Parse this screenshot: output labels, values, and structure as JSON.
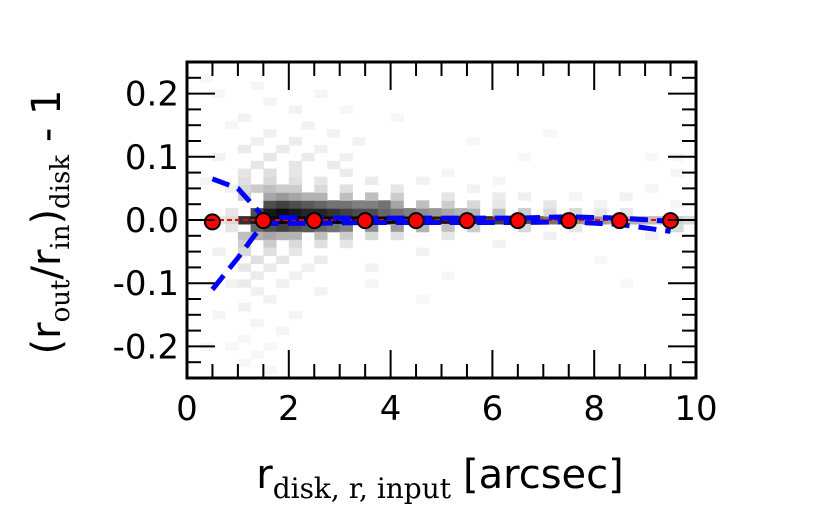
{
  "chart_data": {
    "type": "scatter",
    "title": "",
    "xlabel": {
      "main": "r",
      "subscript": "disk, r, input",
      "suffix": "[arcsec]"
    },
    "ylabel": {
      "open": "(r",
      "sub1": "out",
      "mid": "/r",
      "sub2": "in",
      "close": ")",
      "sub3": "disk",
      "tail": " - 1"
    },
    "xlim": [
      0,
      10
    ],
    "ylim": [
      -0.25,
      0.25
    ],
    "xticks": [
      0,
      2,
      4,
      6,
      8,
      10
    ],
    "xtick_labels": [
      "0",
      "2",
      "4",
      "6",
      "8",
      "10"
    ],
    "yticks": [
      -0.2,
      -0.1,
      0.0,
      0.1,
      0.2
    ],
    "ytick_labels": [
      "-0.2",
      "-0.1",
      "0.0",
      "0.1",
      "0.2"
    ],
    "grid": false,
    "colors": {
      "median_marker_fill": "#ff0000",
      "median_marker_edge": "#000000",
      "percentile_line": "#0000ff",
      "reference_line": "#ff0000",
      "density": "#000000"
    },
    "series": [
      {
        "type": "line",
        "style": "dashed",
        "x": [
          0.5,
          1.0,
          1.5,
          2.5,
          3.5,
          4.5,
          5.5,
          6.5,
          7.5,
          8.5,
          9.5
        ],
        "y": [
          0.065,
          0.05,
          0.005,
          0.003,
          0.003,
          0.003,
          0.003,
          0.003,
          0.005,
          0.003,
          -0.002
        ]
      },
      {
        "type": "line",
        "style": "dashed",
        "x": [
          0.5,
          1.0,
          1.5,
          2.5,
          3.5,
          4.5,
          5.5,
          6.5,
          7.5,
          8.5,
          9.5
        ],
        "y": [
          -0.11,
          -0.06,
          -0.005,
          -0.005,
          -0.004,
          -0.004,
          -0.004,
          -0.004,
          -0.003,
          -0.007,
          -0.018
        ]
      },
      {
        "type": "scatter",
        "x": [
          0.5,
          1.5,
          2.5,
          3.5,
          4.5,
          5.5,
          6.5,
          7.5,
          8.5,
          9.5
        ],
        "y": [
          -0.003,
          -0.001,
          -0.001,
          -0.001,
          -0.001,
          -0.001,
          -0.001,
          -0.001,
          -0.001,
          -0.001
        ]
      }
    ],
    "reference_line_y": 0.0,
    "density_grid": {
      "x_bin_width": 0.25,
      "y_bin_width": 0.0125,
      "cells": [
        [
          1.0,
          0.0,
          0.8
        ],
        [
          1.25,
          0.0,
          0.9
        ],
        [
          1.5,
          0.0,
          1.0
        ],
        [
          1.75,
          0.0,
          1.0
        ],
        [
          2.0,
          0.0,
          1.0
        ],
        [
          2.25,
          0.0,
          1.0
        ],
        [
          2.5,
          0.0,
          1.0
        ],
        [
          2.75,
          0.0,
          1.0
        ],
        [
          3.0,
          0.0,
          1.0
        ],
        [
          3.25,
          0.0,
          1.0
        ],
        [
          3.5,
          0.0,
          1.0
        ],
        [
          3.75,
          0.0,
          1.0
        ],
        [
          4.0,
          0.0,
          0.95
        ],
        [
          4.25,
          0.0,
          0.95
        ],
        [
          4.5,
          0.0,
          0.9
        ],
        [
          4.75,
          0.0,
          0.9
        ],
        [
          5.0,
          0.0,
          0.9
        ],
        [
          5.25,
          0.0,
          0.85
        ],
        [
          5.5,
          0.0,
          0.85
        ],
        [
          5.75,
          0.0,
          0.8
        ],
        [
          6.0,
          0.0,
          0.75
        ],
        [
          6.25,
          0.0,
          0.7
        ],
        [
          6.5,
          0.0,
          0.7
        ],
        [
          6.75,
          0.0,
          0.6
        ],
        [
          7.0,
          0.0,
          0.55
        ],
        [
          7.25,
          0.0,
          0.5
        ],
        [
          7.5,
          0.0,
          0.45
        ],
        [
          7.75,
          0.0,
          0.4
        ],
        [
          8.0,
          0.0,
          0.4
        ],
        [
          8.25,
          0.0,
          0.35
        ],
        [
          8.5,
          0.0,
          0.3
        ],
        [
          8.75,
          0.0,
          0.3
        ],
        [
          9.0,
          0.0,
          0.25
        ],
        [
          9.25,
          0.0,
          0.25
        ],
        [
          9.5,
          0.0,
          0.2
        ],
        [
          9.75,
          0.0,
          0.15
        ],
        [
          1.25,
          0.0125,
          0.7
        ],
        [
          1.5,
          0.0125,
          0.9
        ],
        [
          1.75,
          0.0125,
          0.95
        ],
        [
          2.0,
          0.0125,
          0.9
        ],
        [
          2.25,
          0.0125,
          0.85
        ],
        [
          2.5,
          0.0125,
          0.85
        ],
        [
          2.75,
          0.0125,
          0.8
        ],
        [
          3.0,
          0.0125,
          0.75
        ],
        [
          3.25,
          0.0125,
          0.7
        ],
        [
          3.5,
          0.0125,
          0.7
        ],
        [
          3.75,
          0.0125,
          0.6
        ],
        [
          4.0,
          0.0125,
          0.55
        ],
        [
          4.25,
          0.0125,
          0.5
        ],
        [
          4.5,
          0.0125,
          0.45
        ],
        [
          4.75,
          0.0125,
          0.4
        ],
        [
          5.0,
          0.0125,
          0.35
        ],
        [
          5.25,
          0.0125,
          0.3
        ],
        [
          5.5,
          0.0125,
          0.3
        ],
        [
          6.0,
          0.0125,
          0.25
        ],
        [
          6.5,
          0.0125,
          0.2
        ],
        [
          7.0,
          0.0125,
          0.15
        ],
        [
          7.5,
          0.0125,
          0.15
        ],
        [
          8.0,
          0.0125,
          0.1
        ],
        [
          8.5,
          0.0125,
          0.1
        ],
        [
          1.25,
          -0.0125,
          0.6
        ],
        [
          1.5,
          -0.0125,
          0.7
        ],
        [
          1.75,
          -0.0125,
          0.75
        ],
        [
          2.0,
          -0.0125,
          0.7
        ],
        [
          2.25,
          -0.0125,
          0.65
        ],
        [
          2.5,
          -0.0125,
          0.6
        ],
        [
          2.75,
          -0.0125,
          0.55
        ],
        [
          3.0,
          -0.0125,
          0.5
        ],
        [
          3.5,
          -0.0125,
          0.45
        ],
        [
          4.0,
          -0.0125,
          0.4
        ],
        [
          4.5,
          -0.0125,
          0.3
        ],
        [
          5.0,
          -0.0125,
          0.25
        ],
        [
          5.5,
          -0.0125,
          0.2
        ],
        [
          6.5,
          -0.0125,
          0.15
        ],
        [
          7.5,
          -0.0125,
          0.1
        ],
        [
          9.5,
          -0.0125,
          0.15
        ],
        [
          1.5,
          0.025,
          0.7
        ],
        [
          1.75,
          0.025,
          0.75
        ],
        [
          2.0,
          0.025,
          0.7
        ],
        [
          2.25,
          0.025,
          0.65
        ],
        [
          2.5,
          0.025,
          0.6
        ],
        [
          2.75,
          0.025,
          0.55
        ],
        [
          3.0,
          0.025,
          0.55
        ],
        [
          3.25,
          0.025,
          0.5
        ],
        [
          3.5,
          0.025,
          0.5
        ],
        [
          3.75,
          0.025,
          0.55
        ],
        [
          4.0,
          0.025,
          0.35
        ],
        [
          4.5,
          0.025,
          0.25
        ],
        [
          5.0,
          0.025,
          0.2
        ],
        [
          5.5,
          0.025,
          0.15
        ],
        [
          6.0,
          0.025,
          0.1
        ],
        [
          7.0,
          0.025,
          0.1
        ],
        [
          1.5,
          0.0375,
          0.35
        ],
        [
          1.75,
          0.0375,
          0.4
        ],
        [
          2.0,
          0.0375,
          0.35
        ],
        [
          2.25,
          0.0375,
          0.3
        ],
        [
          2.5,
          0.0375,
          0.3
        ],
        [
          3.0,
          0.0375,
          0.25
        ],
        [
          3.5,
          0.0375,
          0.25
        ],
        [
          4.0,
          0.0375,
          0.2
        ],
        [
          5.0,
          0.0375,
          0.1
        ],
        [
          6.0,
          0.0375,
          0.08
        ],
        [
          1.0,
          0.0375,
          0.2
        ],
        [
          1.0,
          0.05,
          0.15
        ],
        [
          1.25,
          0.05,
          0.2
        ],
        [
          1.5,
          0.05,
          0.25
        ],
        [
          1.75,
          0.05,
          0.2
        ],
        [
          2.0,
          0.05,
          0.2
        ],
        [
          2.5,
          0.05,
          0.15
        ],
        [
          3.0,
          0.05,
          0.12
        ],
        [
          4.0,
          0.05,
          0.1
        ],
        [
          1.0,
          0.0625,
          0.12
        ],
        [
          1.5,
          0.0625,
          0.15
        ],
        [
          2.0,
          0.0625,
          0.12
        ],
        [
          2.5,
          0.0625,
          0.1
        ],
        [
          3.5,
          0.0625,
          0.08
        ],
        [
          1.0,
          0.075,
          0.1
        ],
        [
          1.5,
          0.075,
          0.12
        ],
        [
          2.0,
          0.075,
          0.1
        ],
        [
          3.0,
          0.075,
          0.08
        ],
        [
          1.25,
          0.0875,
          0.1
        ],
        [
          2.0,
          0.0875,
          0.1
        ],
        [
          2.75,
          0.0875,
          0.08
        ],
        [
          1.5,
          0.1,
          0.1
        ],
        [
          2.25,
          0.1,
          0.08
        ],
        [
          3.0,
          0.1,
          0.06
        ],
        [
          1.0,
          0.1125,
          0.08
        ],
        [
          1.75,
          0.1125,
          0.08
        ],
        [
          2.5,
          0.1125,
          0.06
        ],
        [
          1.25,
          0.125,
          0.06
        ],
        [
          2.0,
          0.125,
          0.07
        ],
        [
          1.5,
          0.1375,
          0.06
        ],
        [
          2.25,
          0.15,
          0.05
        ],
        [
          1.0,
          0.1625,
          0.05
        ],
        [
          2.0,
          0.175,
          0.05
        ],
        [
          1.5,
          0.1875,
          0.04
        ],
        [
          2.5,
          0.2,
          0.04
        ],
        [
          1.25,
          0.2125,
          0.04
        ],
        [
          2.75,
          0.1375,
          0.05
        ],
        [
          3.25,
          0.125,
          0.05
        ],
        [
          1.0,
          -0.025,
          0.25
        ],
        [
          1.25,
          -0.025,
          0.3
        ],
        [
          1.5,
          -0.025,
          0.35
        ],
        [
          1.75,
          -0.025,
          0.3
        ],
        [
          2.0,
          -0.025,
          0.3
        ],
        [
          2.5,
          -0.025,
          0.25
        ],
        [
          3.0,
          -0.025,
          0.2
        ],
        [
          3.5,
          -0.025,
          0.15
        ],
        [
          4.0,
          -0.025,
          0.12
        ],
        [
          5.0,
          -0.025,
          0.1
        ],
        [
          1.0,
          -0.0375,
          0.2
        ],
        [
          1.5,
          -0.0375,
          0.2
        ],
        [
          2.0,
          -0.0375,
          0.15
        ],
        [
          2.5,
          -0.0375,
          0.12
        ],
        [
          3.0,
          -0.0375,
          0.1
        ],
        [
          1.0,
          -0.05,
          0.15
        ],
        [
          1.5,
          -0.05,
          0.12
        ],
        [
          2.0,
          -0.05,
          0.1
        ],
        [
          1.25,
          -0.0625,
          0.12
        ],
        [
          1.75,
          -0.0625,
          0.1
        ],
        [
          2.5,
          -0.0625,
          0.08
        ],
        [
          1.0,
          -0.075,
          0.1
        ],
        [
          1.5,
          -0.075,
          0.08
        ],
        [
          2.25,
          -0.075,
          0.06
        ],
        [
          1.25,
          -0.0875,
          0.08
        ],
        [
          2.0,
          -0.0875,
          0.06
        ],
        [
          1.0,
          -0.1,
          0.08
        ],
        [
          1.75,
          -0.1,
          0.06
        ],
        [
          1.25,
          -0.1125,
          0.06
        ],
        [
          2.5,
          -0.1125,
          0.05
        ],
        [
          1.5,
          -0.125,
          0.05
        ],
        [
          1.0,
          -0.1375,
          0.05
        ],
        [
          2.0,
          -0.15,
          0.04
        ],
        [
          1.25,
          -0.1625,
          0.04
        ],
        [
          1.75,
          -0.175,
          0.04
        ],
        [
          1.0,
          -0.1875,
          0.03
        ],
        [
          1.5,
          -0.2,
          0.03
        ],
        [
          1.25,
          -0.2125,
          0.03
        ],
        [
          1.0,
          -0.225,
          0.03
        ],
        [
          1.5,
          -0.2375,
          0.03
        ],
        [
          0.75,
          0.0,
          0.15
        ],
        [
          0.75,
          0.0125,
          0.1
        ],
        [
          0.75,
          -0.0125,
          0.1
        ],
        [
          0.5,
          0.0,
          0.1
        ],
        [
          0.75,
          0.05,
          0.06
        ],
        [
          0.5,
          -0.05,
          0.06
        ],
        [
          0.75,
          -0.1,
          0.05
        ],
        [
          0.5,
          0.1,
          0.05
        ],
        [
          0.25,
          0.0,
          0.05
        ],
        [
          0.25,
          0.0625,
          0.04
        ],
        [
          0.5,
          -0.15,
          0.04
        ],
        [
          0.75,
          0.15,
          0.04
        ],
        [
          0.25,
          -0.2,
          0.03
        ],
        [
          0.5,
          0.2,
          0.03
        ],
        [
          0.75,
          -0.2,
          0.03
        ],
        [
          0.25,
          0.225,
          0.03
        ],
        [
          6.5,
          0.0375,
          0.06
        ],
        [
          7.0,
          -0.025,
          0.06
        ],
        [
          8.0,
          0.025,
          0.05
        ],
        [
          9.0,
          -0.025,
          0.05
        ],
        [
          9.5,
          0.025,
          0.04
        ],
        [
          8.5,
          0.0375,
          0.05
        ],
        [
          7.5,
          0.0375,
          0.04
        ],
        [
          9.0,
          0.05,
          0.04
        ],
        [
          5.5,
          0.05,
          0.05
        ],
        [
          4.5,
          0.0625,
          0.05
        ],
        [
          6.0,
          -0.0375,
          0.05
        ],
        [
          4.5,
          -0.05,
          0.05
        ],
        [
          3.5,
          -0.075,
          0.05
        ],
        [
          5.0,
          0.075,
          0.04
        ],
        [
          6.5,
          0.1,
          0.03
        ],
        [
          8.0,
          -0.0625,
          0.03
        ],
        [
          9.5,
          0.075,
          0.04
        ],
        [
          9.5,
          0.1,
          0.03
        ],
        [
          7.0,
          0.1375,
          0.03
        ],
        [
          3.0,
          0.175,
          0.03
        ],
        [
          4.0,
          0.1625,
          0.03
        ],
        [
          5.5,
          0.125,
          0.03
        ],
        [
          3.5,
          -0.1,
          0.04
        ],
        [
          4.5,
          -0.125,
          0.03
        ],
        [
          9.0,
          0.1,
          0.03
        ],
        [
          8.5,
          -0.1,
          0.03
        ],
        [
          5.0,
          -0.0875,
          0.03
        ],
        [
          6.0,
          0.0625,
          0.04
        ]
      ]
    }
  }
}
